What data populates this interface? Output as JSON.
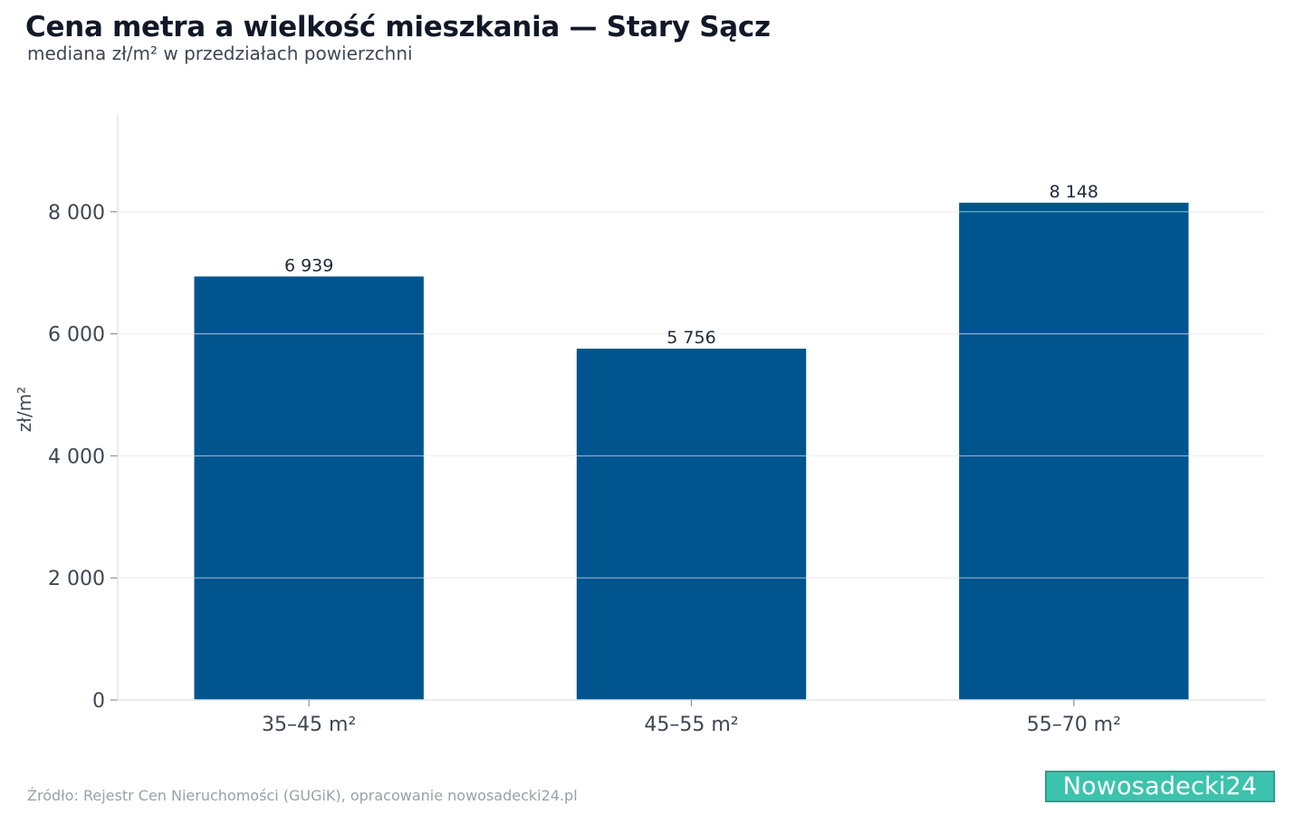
{
  "header": {
    "title": "Cena metra a wielkość mieszkania — Stary Sącz",
    "subtitle": "mediana zł/m² w przedziałach powierzchni"
  },
  "footer": {
    "source": "Źródło: Rejestr Cen Nieruchomości (GUGiK), opracowanie nowosadecki24.pl",
    "brand": "Nowosadecki24"
  },
  "colors": {
    "bar": "#00558f",
    "grid": "#e4e6ea",
    "brand": "#3cc3ad"
  },
  "chart_data": {
    "type": "bar",
    "categories": [
      "35–45 m²",
      "45–55 m²",
      "55–70 m²"
    ],
    "values": [
      6939,
      5756,
      8148
    ],
    "value_labels": [
      "6 939",
      "5 756",
      "8 148"
    ],
    "ylabel": "zł/m²",
    "ylim": [
      0,
      9600
    ],
    "yticks": [
      0,
      2000,
      4000,
      6000,
      8000
    ],
    "ytick_labels": [
      "0",
      "2 000",
      "4 000",
      "6 000",
      "8 000"
    ],
    "grid": true,
    "legend": "none"
  }
}
